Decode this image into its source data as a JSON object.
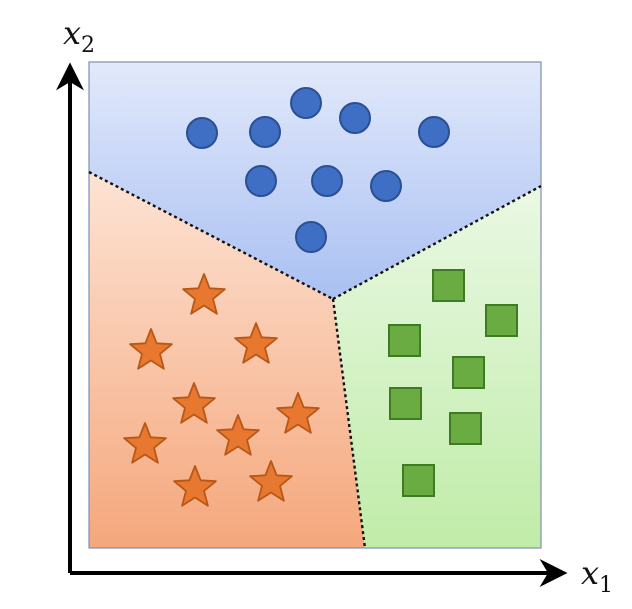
{
  "axes": {
    "x_label": {
      "var": "x",
      "sub": "1"
    },
    "y_label": {
      "var": "x",
      "sub": "2"
    }
  },
  "classes": [
    {
      "name": "circle",
      "color": "#3f6fc4",
      "stroke": "#2a4f92",
      "region_color": "#c7d6f7"
    },
    {
      "name": "star",
      "color": "#e8782f",
      "stroke": "#b85716",
      "region_color": "#f8c2a2"
    },
    {
      "name": "square",
      "color": "#6aac42",
      "stroke": "#3f7a24",
      "region_color": "#cdefc0"
    }
  ],
  "colors": {
    "axis": "#000000",
    "boundary": "#111111",
    "frame": "#7f8fb2"
  }
}
